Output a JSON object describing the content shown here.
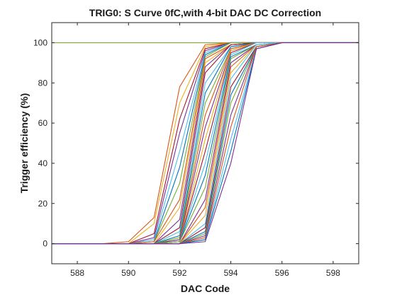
{
  "chart_data": {
    "type": "line",
    "title": "TRIG0: S Curve 0fC,with 4-bit DAC DC Correction",
    "xlabel": "DAC Code",
    "ylabel": "Trigger efficiency (%)",
    "xlim": [
      587,
      599
    ],
    "ylim": [
      -10,
      110
    ],
    "xticks": [
      588,
      590,
      592,
      594,
      596,
      598
    ],
    "yticks": [
      0,
      20,
      40,
      60,
      80,
      100
    ],
    "grid": false,
    "legend": "none",
    "x": [
      587,
      588,
      589,
      590,
      591,
      592,
      593,
      594,
      595,
      596,
      597,
      598,
      599
    ],
    "series": [
      {
        "color": "#77ac30",
        "values": [
          100,
          100,
          100,
          100,
          100,
          100,
          100,
          100,
          100,
          100,
          100,
          100,
          100
        ]
      },
      {
        "color": "#d95319",
        "values": [
          0,
          0,
          0,
          1,
          13,
          78,
          99,
          100,
          100,
          100,
          100,
          100,
          100
        ]
      },
      {
        "color": "#edb120",
        "values": [
          0,
          0,
          0,
          0,
          10,
          70,
          98,
          100,
          100,
          100,
          100,
          100,
          100
        ]
      },
      {
        "color": "#a2142f",
        "values": [
          0,
          0,
          0,
          0,
          5,
          62,
          97,
          100,
          100,
          100,
          100,
          100,
          100
        ]
      },
      {
        "color": "#7e2f8e",
        "values": [
          0,
          0,
          0,
          0,
          3,
          55,
          96,
          100,
          100,
          100,
          100,
          100,
          100
        ]
      },
      {
        "color": "#4dbeee",
        "values": [
          0,
          0,
          0,
          0,
          2,
          46,
          95,
          100,
          100,
          100,
          100,
          100,
          100
        ]
      },
      {
        "color": "#0072bd",
        "values": [
          0,
          0,
          0,
          0,
          1,
          38,
          94,
          100,
          100,
          100,
          100,
          100,
          100
        ]
      },
      {
        "color": "#77ac30",
        "values": [
          0,
          0,
          0,
          0,
          1,
          30,
          93,
          100,
          100,
          100,
          100,
          100,
          100
        ]
      },
      {
        "color": "#d95319",
        "values": [
          0,
          0,
          0,
          0,
          1,
          22,
          92,
          99,
          100,
          100,
          100,
          100,
          100
        ]
      },
      {
        "color": "#edb120",
        "values": [
          0,
          0,
          0,
          0,
          0,
          18,
          90,
          99,
          100,
          100,
          100,
          100,
          100
        ]
      },
      {
        "color": "#7e2f8e",
        "values": [
          0,
          0,
          0,
          0,
          0,
          12,
          88,
          99,
          100,
          100,
          100,
          100,
          100
        ]
      },
      {
        "color": "#a2142f",
        "values": [
          0,
          0,
          0,
          0,
          0,
          8,
          85,
          99,
          100,
          100,
          100,
          100,
          100
        ]
      },
      {
        "color": "#4dbeee",
        "values": [
          0,
          0,
          0,
          0,
          0,
          6,
          80,
          98,
          100,
          100,
          100,
          100,
          100
        ]
      },
      {
        "color": "#0072bd",
        "values": [
          0,
          0,
          0,
          0,
          0,
          4,
          75,
          98,
          100,
          100,
          100,
          100,
          100
        ]
      },
      {
        "color": "#77ac30",
        "values": [
          0,
          0,
          0,
          0,
          0,
          3,
          70,
          97,
          100,
          100,
          100,
          100,
          100
        ]
      },
      {
        "color": "#d95319",
        "values": [
          0,
          0,
          0,
          0,
          0,
          2,
          64,
          97,
          100,
          100,
          100,
          100,
          100
        ]
      },
      {
        "color": "#7e2f8e",
        "values": [
          0,
          0,
          0,
          0,
          0,
          2,
          58,
          96,
          100,
          100,
          100,
          100,
          100
        ]
      },
      {
        "color": "#edb120",
        "values": [
          0,
          0,
          0,
          0,
          0,
          1,
          52,
          96,
          100,
          100,
          100,
          100,
          100
        ]
      },
      {
        "color": "#a2142f",
        "values": [
          0,
          0,
          0,
          0,
          0,
          1,
          46,
          95,
          100,
          100,
          100,
          100,
          100
        ]
      },
      {
        "color": "#4dbeee",
        "values": [
          0,
          0,
          0,
          0,
          0,
          1,
          40,
          94,
          100,
          100,
          100,
          100,
          100
        ]
      },
      {
        "color": "#0072bd",
        "values": [
          0,
          0,
          0,
          0,
          0,
          1,
          34,
          93,
          99,
          100,
          100,
          100,
          100
        ]
      },
      {
        "color": "#77ac30",
        "values": [
          0,
          0,
          0,
          0,
          0,
          1,
          28,
          92,
          99,
          100,
          100,
          100,
          100
        ]
      },
      {
        "color": "#7e2f8e",
        "values": [
          0,
          0,
          0,
          0,
          0,
          0,
          22,
          90,
          99,
          100,
          100,
          100,
          100
        ]
      },
      {
        "color": "#d95319",
        "values": [
          0,
          0,
          0,
          0,
          0,
          0,
          18,
          88,
          99,
          100,
          100,
          100,
          100
        ]
      },
      {
        "color": "#edb120",
        "values": [
          0,
          0,
          0,
          0,
          0,
          0,
          14,
          85,
          99,
          100,
          100,
          100,
          100
        ]
      },
      {
        "color": "#4dbeee",
        "values": [
          0,
          0,
          0,
          0,
          0,
          0,
          10,
          82,
          99,
          100,
          100,
          100,
          100
        ]
      },
      {
        "color": "#a2142f",
        "values": [
          0,
          0,
          0,
          0,
          0,
          0,
          8,
          78,
          98,
          100,
          100,
          100,
          100
        ]
      },
      {
        "color": "#0072bd",
        "values": [
          0,
          0,
          0,
          0,
          0,
          0,
          6,
          74,
          98,
          100,
          100,
          100,
          100
        ]
      },
      {
        "color": "#77ac30",
        "values": [
          0,
          0,
          0,
          0,
          0,
          0,
          5,
          70,
          98,
          100,
          100,
          100,
          100
        ]
      },
      {
        "color": "#7e2f8e",
        "values": [
          0,
          0,
          0,
          0,
          0,
          0,
          4,
          64,
          98,
          100,
          100,
          100,
          100
        ]
      },
      {
        "color": "#d95319",
        "values": [
          0,
          0,
          0,
          0,
          0,
          0,
          3,
          58,
          98,
          100,
          100,
          100,
          100
        ]
      },
      {
        "color": "#4dbeee",
        "values": [
          0,
          0,
          0,
          0,
          0,
          0,
          2,
          52,
          97,
          100,
          100,
          100,
          100
        ]
      },
      {
        "color": "#0072bd",
        "values": [
          0,
          0,
          0,
          0,
          0,
          0,
          2,
          46,
          97,
          100,
          100,
          100,
          100
        ]
      },
      {
        "color": "#7e2f8e",
        "values": [
          0,
          0,
          0,
          0,
          0,
          0,
          1,
          40,
          97,
          100,
          100,
          100,
          100
        ]
      }
    ]
  }
}
